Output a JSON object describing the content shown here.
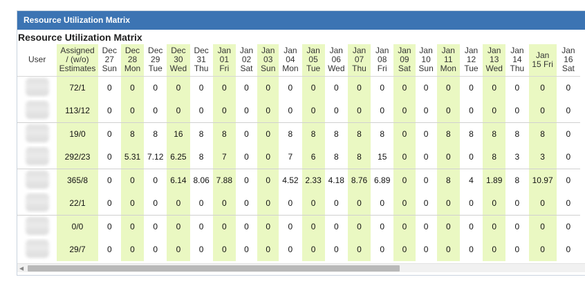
{
  "window": {
    "title": "Resource Utilization Matrix"
  },
  "matrix": {
    "title": "Resource Utilization Matrix",
    "columns": {
      "user": "User",
      "assigned": [
        "Assigned",
        "/ (w/o)",
        "Estimates"
      ]
    },
    "days": [
      {
        "lines": [
          "Dec",
          "27",
          "Sun"
        ],
        "highlight": false
      },
      {
        "lines": [
          "Dec",
          "28",
          "Mon"
        ],
        "highlight": true
      },
      {
        "lines": [
          "Dec",
          "29",
          "Tue"
        ],
        "highlight": false
      },
      {
        "lines": [
          "Dec",
          "30",
          "Wed"
        ],
        "highlight": true
      },
      {
        "lines": [
          "Dec",
          "31",
          "Thu"
        ],
        "highlight": false
      },
      {
        "lines": [
          "Jan",
          "01",
          "Fri"
        ],
        "highlight": true
      },
      {
        "lines": [
          "Jan",
          "02",
          "Sat"
        ],
        "highlight": false
      },
      {
        "lines": [
          "Jan",
          "03",
          "Sun"
        ],
        "highlight": true
      },
      {
        "lines": [
          "Jan",
          "04",
          "Mon"
        ],
        "highlight": false
      },
      {
        "lines": [
          "Jan",
          "05",
          "Tue"
        ],
        "highlight": true
      },
      {
        "lines": [
          "Jan",
          "06",
          "Wed"
        ],
        "highlight": false
      },
      {
        "lines": [
          "Jan",
          "07",
          "Thu"
        ],
        "highlight": true
      },
      {
        "lines": [
          "Jan",
          "08",
          "Fri"
        ],
        "highlight": false
      },
      {
        "lines": [
          "Jan",
          "09",
          "Sat"
        ],
        "highlight": true
      },
      {
        "lines": [
          "Jan",
          "10",
          "Sun"
        ],
        "highlight": false
      },
      {
        "lines": [
          "Jan",
          "11",
          "Mon"
        ],
        "highlight": true
      },
      {
        "lines": [
          "Jan",
          "12",
          "Tue"
        ],
        "highlight": false
      },
      {
        "lines": [
          "Jan",
          "13",
          "Wed"
        ],
        "highlight": true
      },
      {
        "lines": [
          "Jan",
          "14",
          "Thu"
        ],
        "highlight": false
      },
      {
        "lines": [
          "Jan",
          "15 Fri"
        ],
        "highlight": true
      },
      {
        "lines": [
          "Jan",
          "16",
          "Sat"
        ],
        "highlight": false
      }
    ],
    "rows": [
      {
        "assigned": "72/1",
        "values": [
          "0",
          "0",
          "0",
          "0",
          "0",
          "0",
          "0",
          "0",
          "0",
          "0",
          "0",
          "0",
          "0",
          "0",
          "0",
          "0",
          "0",
          "0",
          "0",
          "0",
          "0"
        ],
        "group_end": false
      },
      {
        "assigned": "113/12",
        "values": [
          "0",
          "0",
          "0",
          "0",
          "0",
          "0",
          "0",
          "0",
          "0",
          "0",
          "0",
          "0",
          "0",
          "0",
          "0",
          "0",
          "0",
          "0",
          "0",
          "0",
          "0"
        ],
        "group_end": true
      },
      {
        "assigned": "19/0",
        "values": [
          "0",
          "8",
          "8",
          "16",
          "8",
          "8",
          "0",
          "0",
          "8",
          "8",
          "8",
          "8",
          "8",
          "0",
          "0",
          "8",
          "8",
          "8",
          "8",
          "8",
          "0"
        ],
        "group_end": false
      },
      {
        "assigned": "292/23",
        "values": [
          "0",
          "5.31",
          "7.12",
          "6.25",
          "8",
          "7",
          "0",
          "0",
          "7",
          "6",
          "8",
          "8",
          "15",
          "0",
          "0",
          "0",
          "0",
          "8",
          "3",
          "3",
          "0"
        ],
        "group_end": true
      },
      {
        "assigned": "365/8",
        "values": [
          "0",
          "0",
          "0",
          "6.14",
          "8.06",
          "7.88",
          "0",
          "0",
          "4.52",
          "2.33",
          "4.18",
          "8.76",
          "6.89",
          "0",
          "0",
          "8",
          "4",
          "1.89",
          "8",
          "10.97",
          "0"
        ],
        "group_end": false
      },
      {
        "assigned": "22/1",
        "values": [
          "0",
          "0",
          "0",
          "0",
          "0",
          "0",
          "0",
          "0",
          "0",
          "0",
          "0",
          "0",
          "0",
          "0",
          "0",
          "0",
          "0",
          "0",
          "0",
          "0",
          "0"
        ],
        "group_end": true
      },
      {
        "assigned": "0/0",
        "values": [
          "0",
          "0",
          "0",
          "0",
          "0",
          "0",
          "0",
          "0",
          "0",
          "0",
          "0",
          "0",
          "0",
          "0",
          "0",
          "0",
          "0",
          "0",
          "0",
          "0",
          "0"
        ],
        "group_end": false
      },
      {
        "assigned": "29/7",
        "values": [
          "0",
          "0",
          "0",
          "0",
          "0",
          "0",
          "0",
          "0",
          "0",
          "0",
          "0",
          "0",
          "0",
          "0",
          "0",
          "0",
          "0",
          "0",
          "0",
          "0",
          "0"
        ],
        "group_end": false
      }
    ]
  },
  "colors": {
    "header_bar": "#3c74b3",
    "highlight_column": "#eaf8c2"
  },
  "icons": {
    "scroll_left": "arrow-left-icon"
  }
}
